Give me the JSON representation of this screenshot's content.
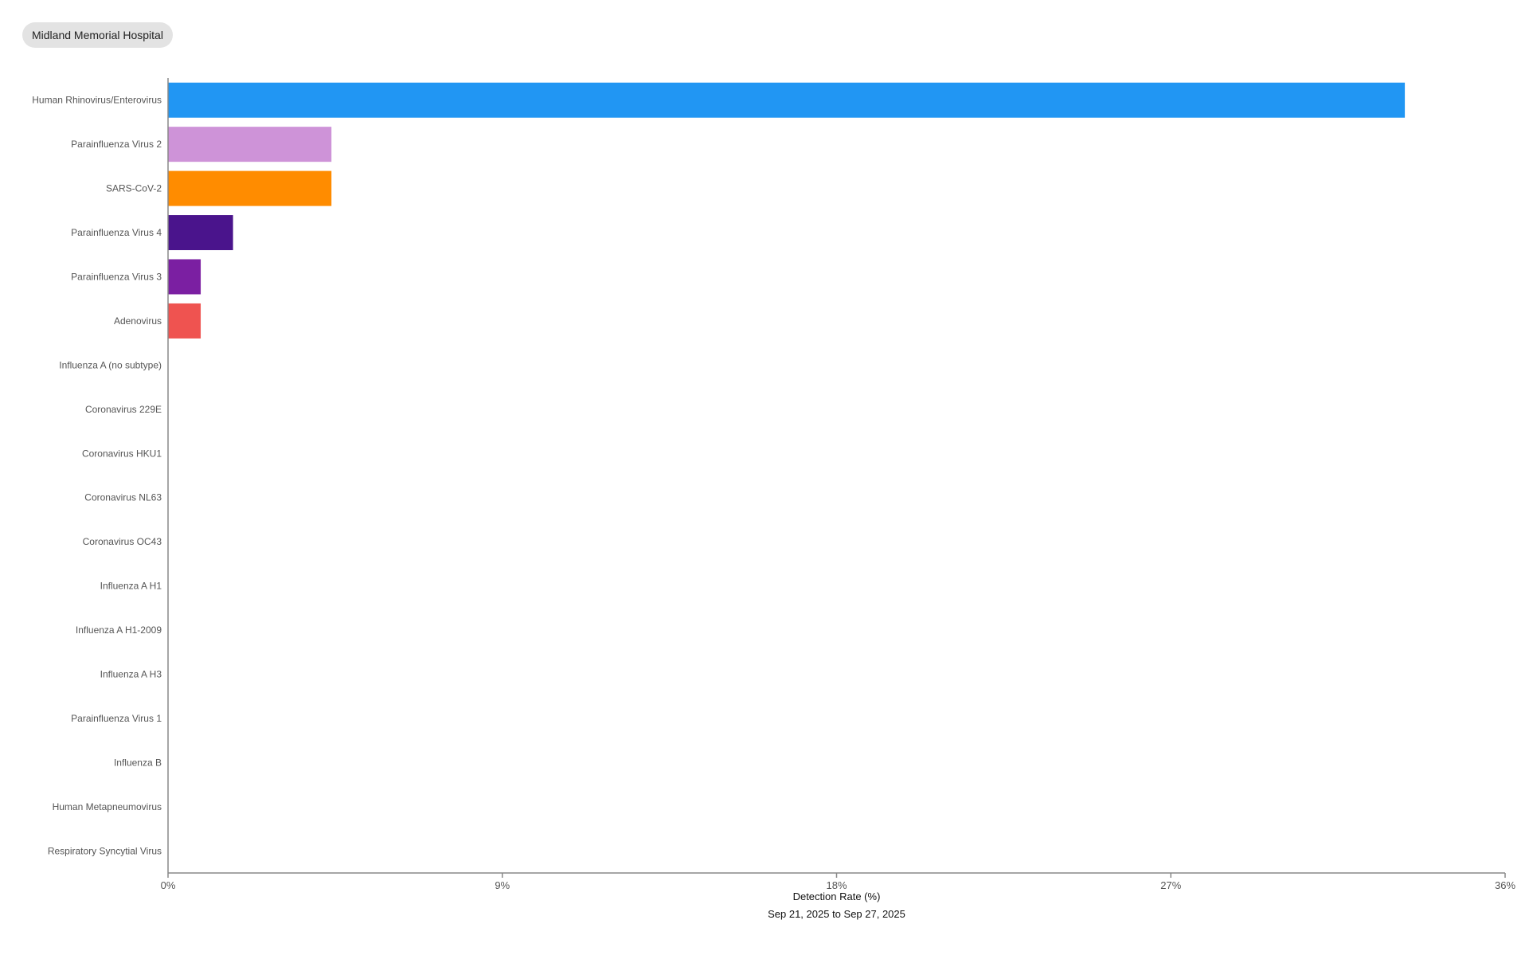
{
  "header": {
    "site_label": "Midland Memorial Hospital"
  },
  "chart_data": {
    "type": "bar",
    "orientation": "horizontal",
    "categories": [
      "Human Rhinovirus/Enterovirus",
      "Parainfluenza Virus 2",
      "SARS-CoV-2",
      "Parainfluenza Virus 4",
      "Parainfluenza Virus 3",
      "Adenovirus",
      "Influenza A (no subtype)",
      "Coronavirus 229E",
      "Coronavirus HKU1",
      "Coronavirus NL63",
      "Coronavirus OC43",
      "Influenza A H1",
      "Influenza A H1-2009",
      "Influenza A H3",
      "Parainfluenza Virus 1",
      "Influenza B",
      "Human Metapneumovirus",
      "Respiratory Syncytial Virus"
    ],
    "values": [
      33.3,
      4.4,
      4.4,
      1.75,
      0.88,
      0.88,
      0,
      0,
      0,
      0,
      0,
      0,
      0,
      0,
      0,
      0,
      0,
      0
    ],
    "colors": [
      "#2196F3",
      "#CE93D8",
      "#FF8C00",
      "#4A148C",
      "#7B1FA2",
      "#EF5350",
      "#9E9E9E",
      "#9E9E9E",
      "#9E9E9E",
      "#9E9E9E",
      "#9E9E9E",
      "#9E9E9E",
      "#9E9E9E",
      "#9E9E9E",
      "#9E9E9E",
      "#9E9E9E",
      "#9E9E9E",
      "#9E9E9E"
    ],
    "xlim": [
      0,
      36
    ],
    "xticks": [
      0,
      9,
      18,
      27,
      36
    ],
    "xtick_labels": [
      "0%",
      "9%",
      "18%",
      "27%",
      "36%"
    ],
    "xlabel": "Detection Rate (%)",
    "subtitle": "Sep 21, 2025 to Sep 27, 2025",
    "grid": false,
    "legend": "none"
  }
}
